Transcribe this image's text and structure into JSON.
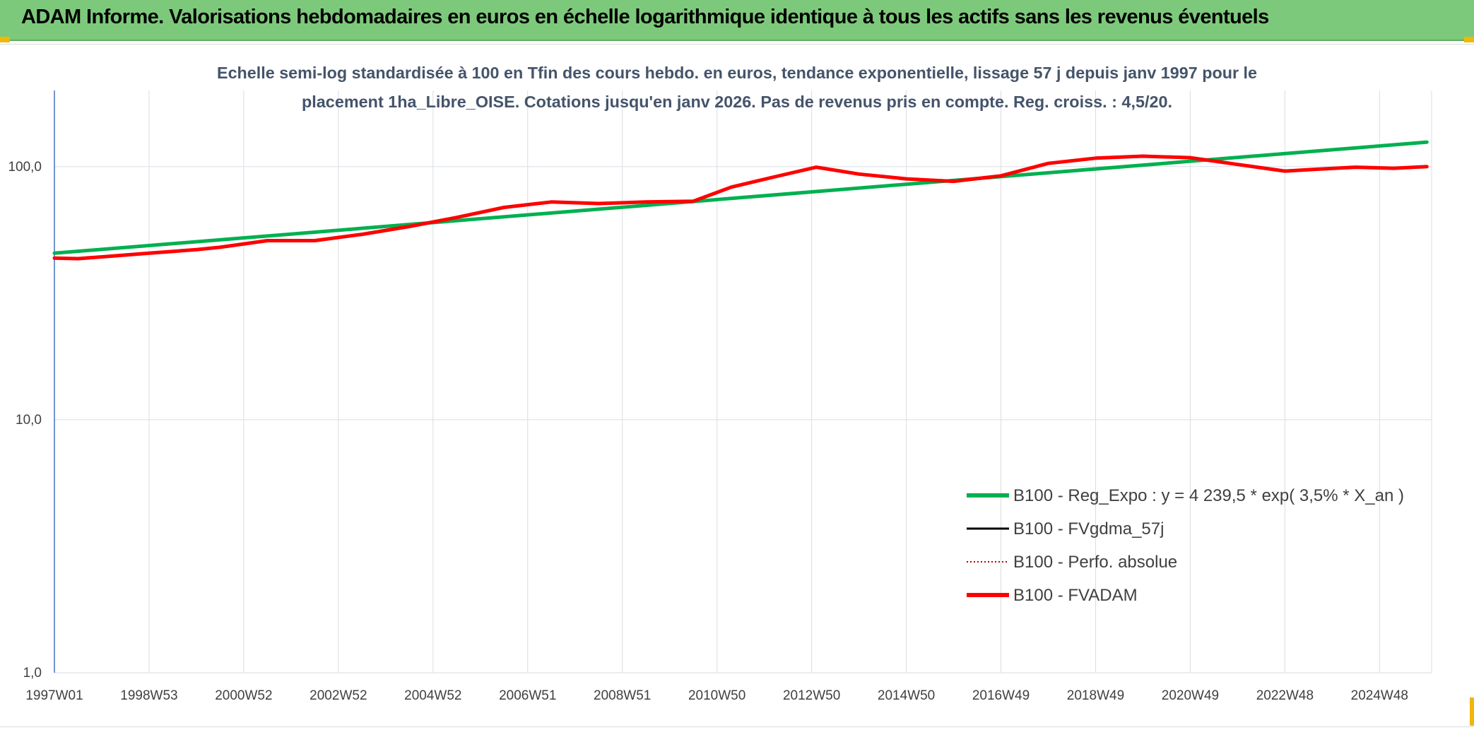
{
  "header": {
    "title": "ADAM Informe. Valorisations hebdomadaires en euros en échelle logarithmique identique à tous les actifs sans les revenus éventuels"
  },
  "colors": {
    "header_bg": "#7dc97b",
    "grid": "#d9dde3",
    "axis": "#4472c4",
    "text": "#404040",
    "series_green": "#00b050",
    "series_black": "#000000",
    "series_red_dotted": "#c00000",
    "series_red": "#ff0000"
  },
  "chart_data": {
    "type": "line",
    "title_lines": [
      "Echelle semi-log standardisée à 100 en Tfin des cours hebdo. en euros, tendance exponentielle, lissage 57 j depuis janv 1997 pour le",
      "placement 1ha_Libre_OISE. Cotations jusqu'en janv 2026. Pas de revenus pris en compte. Reg. croiss. : 4,5/20."
    ],
    "y_scale": "log",
    "ylim": [
      1,
      200
    ],
    "y_ticks": [
      {
        "value": 1,
        "label": "1,0"
      },
      {
        "value": 10,
        "label": "10,0"
      },
      {
        "value": 100,
        "label": "100,0"
      }
    ],
    "xlim": [
      1997.0,
      2026.1
    ],
    "x_ticks": [
      {
        "value": 1997.0,
        "label": "1997W01"
      },
      {
        "value": 1999.0,
        "label": "1998W53"
      },
      {
        "value": 2001.0,
        "label": "2000W52"
      },
      {
        "value": 2003.0,
        "label": "2002W52"
      },
      {
        "value": 2005.0,
        "label": "2004W52"
      },
      {
        "value": 2007.0,
        "label": "2006W51"
      },
      {
        "value": 2009.0,
        "label": "2008W51"
      },
      {
        "value": 2011.0,
        "label": "2010W50"
      },
      {
        "value": 2013.0,
        "label": "2012W50"
      },
      {
        "value": 2015.0,
        "label": "2014W50"
      },
      {
        "value": 2017.0,
        "label": "2016W49"
      },
      {
        "value": 2019.0,
        "label": "2018W49"
      },
      {
        "value": 2021.0,
        "label": "2020W49"
      },
      {
        "value": 2023.0,
        "label": "2022W48"
      },
      {
        "value": 2025.0,
        "label": "2024W48"
      }
    ],
    "legend_position": "lower-right",
    "series": [
      {
        "name": "B100 - Reg_Expo : y = 4 239,5 * exp( 3,5% *  X_an )",
        "style": "solid-thick",
        "color": "#00b050",
        "x": [
          1997.0,
          2026.0
        ],
        "y": [
          45.5,
          125
        ]
      },
      {
        "name": "B100 - FVgdma_57j",
        "style": "solid",
        "color": "#000000",
        "x": [],
        "y": []
      },
      {
        "name": "B100 - Perfo. absolue",
        "style": "dotted",
        "color": "#c00000",
        "x": [],
        "y": []
      },
      {
        "name": "B100 - FVADAM",
        "style": "solid-thick",
        "color": "#ff0000",
        "x": [
          1997.0,
          1997.5,
          1998.0,
          1999.0,
          2000.0,
          2000.5,
          2001.5,
          2002.5,
          2003.5,
          2004.5,
          2005.5,
          2006.5,
          2007.5,
          2008.5,
          2009.5,
          2010.5,
          2011.3,
          2012.2,
          2013.1,
          2014.0,
          2015.0,
          2016.0,
          2017.0,
          2018.0,
          2019.0,
          2020.0,
          2021.0,
          2022.0,
          2023.0,
          2023.6,
          2024.5,
          2025.3,
          2026.0
        ],
        "y": [
          43.5,
          43.3,
          44,
          45.5,
          47,
          48,
          51,
          51,
          54,
          58,
          63,
          69,
          72.5,
          71.5,
          72.5,
          73,
          83,
          91,
          99.5,
          93.5,
          89.5,
          87.5,
          92,
          103,
          108,
          110,
          108.5,
          102,
          96,
          97.5,
          99.5,
          98.5,
          100
        ]
      }
    ]
  }
}
